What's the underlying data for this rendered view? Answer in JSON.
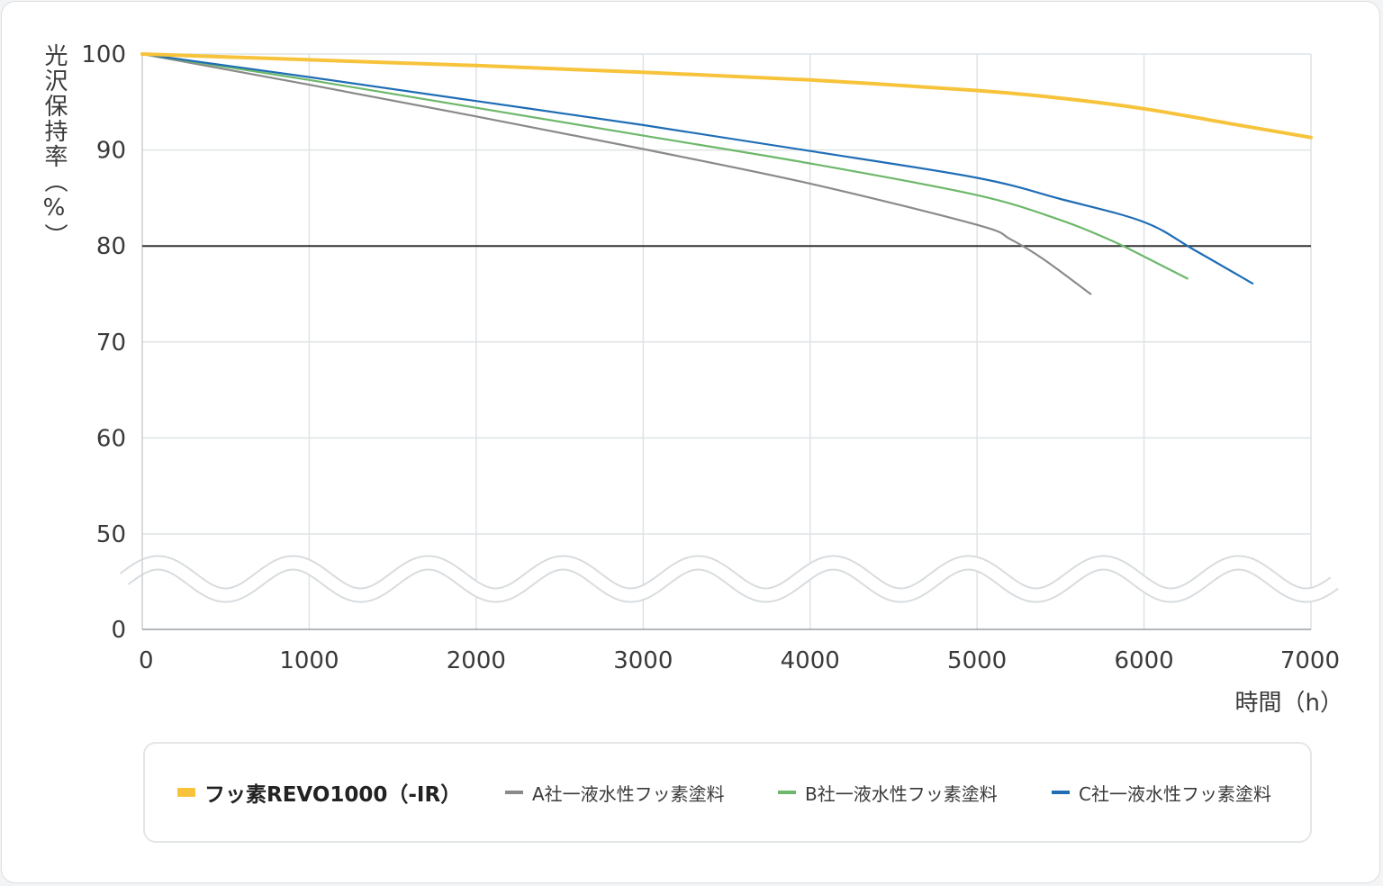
{
  "chart_data": {
    "type": "line",
    "ylabel": "光沢保持率（%）",
    "xlabel": "時間（h）",
    "x_ticks": [
      "0",
      "1000",
      "2000",
      "3000",
      "4000",
      "5000",
      "6000",
      "7000"
    ],
    "y_ticks": [
      "100",
      "90",
      "80",
      "70",
      "60",
      "50",
      "0"
    ],
    "xlim": [
      0,
      7000
    ],
    "ylim": [
      0,
      100
    ],
    "axis_break": "between 0 and 50 (wavy break)",
    "reference_line": {
      "y": 80,
      "color": "#333333"
    },
    "grid": true,
    "legend_position": "bottom",
    "series": [
      {
        "name": "フッ素REVO1000（-IR）",
        "color": "#f7c33b",
        "bold": true,
        "x": [
          0,
          1000,
          2000,
          3000,
          4000,
          5000,
          5500,
          6000,
          6500,
          7000
        ],
        "y": [
          100,
          99.4,
          98.8,
          98.1,
          97.3,
          96.2,
          95.4,
          94.3,
          92.8,
          91.3
        ]
      },
      {
        "name": "A社一液水性フッ素塗料",
        "color": "#8a8a8a",
        "bold": false,
        "x": [
          0,
          1000,
          2000,
          3000,
          4000,
          5000,
          5200,
          5400,
          5680
        ],
        "y": [
          100,
          96.8,
          93.5,
          90.1,
          86.5,
          82.2,
          80.7,
          78.6,
          75.0
        ]
      },
      {
        "name": "B社一液水性フッ素塗料",
        "color": "#6db86a",
        "bold": false,
        "x": [
          0,
          1000,
          2000,
          3000,
          4000,
          5000,
          5500,
          5800,
          6000,
          6260
        ],
        "y": [
          100,
          97.3,
          94.4,
          91.5,
          88.6,
          85.3,
          82.7,
          80.6,
          78.9,
          76.6
        ]
      },
      {
        "name": "C社一液水性フッ素塗料",
        "color": "#1f6db5",
        "bold": false,
        "x": [
          0,
          1000,
          2000,
          3000,
          4000,
          5000,
          5500,
          6000,
          6300,
          6650
        ],
        "y": [
          100,
          97.6,
          95.1,
          92.6,
          89.9,
          87.1,
          84.9,
          82.5,
          79.6,
          76.1
        ]
      }
    ]
  }
}
